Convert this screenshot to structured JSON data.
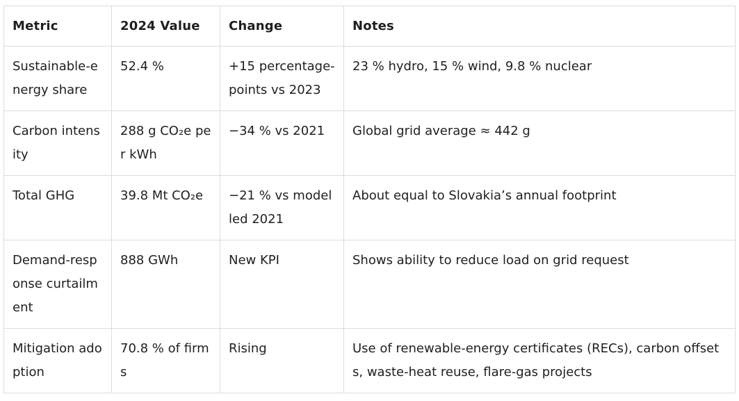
{
  "table": {
    "headers": [
      "Metric",
      "2024 Value",
      "Change",
      "Notes"
    ],
    "rows": [
      {
        "metric": "Sustainable-energy share",
        "value": "52.4 %",
        "change": "+15 percentage-points vs 2023",
        "notes": "23 % hydro, 15 % wind, 9.8 % nuclear"
      },
      {
        "metric": "Carbon intensity",
        "value": "288 g CO₂e per kWh",
        "change": "−34 % vs 2021",
        "notes": "Global grid average ≈ 442 g"
      },
      {
        "metric": "Total GHG",
        "value": "39.8 Mt CO₂e",
        "change": "−21 % vs modelled 2021",
        "notes": "About equal to Slovakia’s annual footprint"
      },
      {
        "metric": "Demand-response curtailment",
        "value": "888 GWh",
        "change": "New KPI",
        "notes": "Shows ability to reduce load on grid request"
      },
      {
        "metric": "Mitigation adoption",
        "value": "70.8 % of firms",
        "change": "Rising",
        "notes": "Use of renewable-energy certificates (RECs), carbon offsets, waste-heat reuse, flare-gas projects"
      }
    ]
  }
}
